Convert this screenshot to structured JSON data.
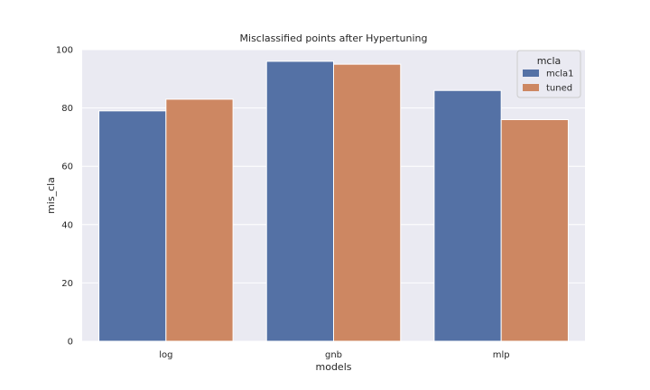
{
  "chart_data": {
    "type": "bar",
    "title": "Misclassified points after Hypertuning",
    "xlabel": "models",
    "ylabel": "mis_cla",
    "categories": [
      "log",
      "gnb",
      "mlp"
    ],
    "series": [
      {
        "name": "mcla1",
        "values": [
          79,
          96,
          86
        ],
        "color": "#5471a5"
      },
      {
        "name": "tuned",
        "values": [
          83,
          95,
          76
        ],
        "color": "#cd8762"
      }
    ],
    "ylim": [
      0,
      100
    ],
    "yticks": [
      0,
      20,
      40,
      60,
      80,
      100
    ],
    "grid": true,
    "legend": {
      "title": "mcla",
      "position": "top-right"
    },
    "background_color": "#eaeaf2"
  }
}
